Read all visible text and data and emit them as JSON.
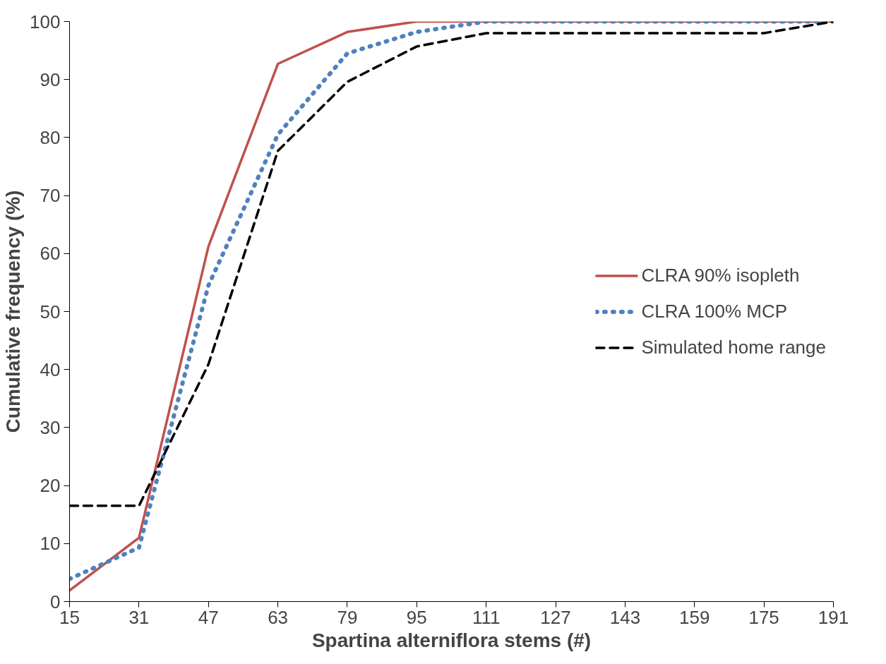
{
  "chart_data": {
    "type": "line",
    "xlabel": "Spartina alterniflora stems (#)",
    "ylabel": "Cumulative frequency (%)",
    "xlim": [
      15,
      191
    ],
    "xticks": [
      15,
      31,
      47,
      63,
      79,
      95,
      111,
      127,
      143,
      159,
      175,
      191
    ],
    "ylim": [
      0,
      100
    ],
    "yticks": [
      0,
      10,
      20,
      30,
      40,
      50,
      60,
      70,
      80,
      90,
      100
    ],
    "grid": false,
    "legend": "right",
    "marker": "none",
    "series": [
      {
        "name": "CLRA 90% isopleth",
        "color": "#c0504d",
        "line_style": "solid",
        "x": [
          15,
          31,
          47,
          63,
          79,
          95,
          111,
          127,
          143,
          159,
          175,
          191
        ],
        "values": [
          1.9,
          11,
          61.2,
          92.7,
          98.2,
          100,
          100,
          100,
          100,
          100,
          100,
          100
        ]
      },
      {
        "name": "CLRA 100% MCP",
        "color": "#4f81bd",
        "line_style": "dotted",
        "x": [
          15,
          31,
          47,
          63,
          79,
          95,
          111,
          127,
          143,
          159,
          175,
          191
        ],
        "values": [
          3.9,
          9.3,
          54.5,
          80.5,
          94.5,
          98.2,
          100,
          100,
          100,
          100,
          100,
          100
        ]
      },
      {
        "name": "Simulated home range",
        "color": "#000000",
        "line_style": "dashed",
        "x": [
          15,
          31,
          47,
          63,
          79,
          95,
          111,
          127,
          143,
          159,
          175,
          191
        ],
        "values": [
          16.5,
          16.5,
          40.9,
          77.7,
          89.6,
          95.7,
          98,
          98,
          98,
          98,
          98,
          100
        ]
      }
    ]
  }
}
